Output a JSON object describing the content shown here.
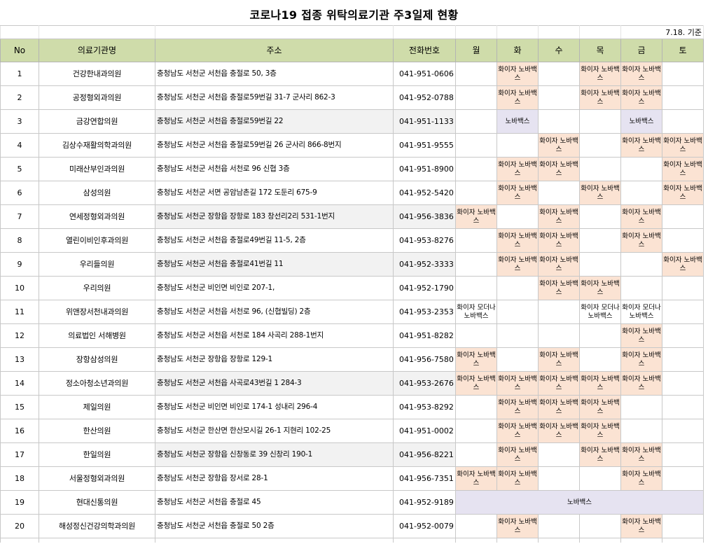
{
  "title": "코로나19 접종 위탁의료기관 주3일제 현황",
  "reference_date": "7.18. 기준",
  "headers": {
    "no": "No",
    "name": "의료기관명",
    "address": "주소",
    "phone": "전화번호",
    "days": [
      "월",
      "화",
      "수",
      "목",
      "금",
      "토"
    ]
  },
  "vaccine_labels": {
    "pn": "화이자 노바백스",
    "n": "노바백스",
    "pmn": "화이자 모더나 노바백스"
  },
  "colors": {
    "header": "#cfdcaa",
    "pfizer_novavax": "#fbe3d3",
    "novavax": "#e6e3f1",
    "pfizer_moderna_novavax": "#dde7f3"
  },
  "rows": [
    {
      "no": "1",
      "name": "건강한내과의원",
      "address": "충청남도 서천군 서천읍 충절로 50, 3층",
      "phone": "041-951-0606",
      "days": [
        "",
        "pn",
        "",
        "pn",
        "pn",
        ""
      ]
    },
    {
      "no": "2",
      "name": "공정형외과의원",
      "address": "충청남도 서천군 서천읍 충절로59번길 31-7 군사리 862-3",
      "phone": "041-952-0788",
      "days": [
        "",
        "pn",
        "",
        "pn",
        "pn",
        ""
      ]
    },
    {
      "no": "3",
      "name": "금강연합의원",
      "address": "충청남도 서천군 서천읍 충절로59번길 22",
      "phone": "041-951-1133",
      "days": [
        "",
        "n",
        "",
        "",
        "n",
        ""
      ]
    },
    {
      "no": "4",
      "name": "김상수재활의학과의원",
      "address": "충청남도 서천군 서천읍 충절로59번길 26 군사리 866-8번지",
      "phone": "041-951-9555",
      "days": [
        "",
        "",
        "pn",
        "",
        "pn",
        "pn"
      ]
    },
    {
      "no": "5",
      "name": "미래산부인과의원",
      "address": "충청남도 서천군 서천읍 서천로 96 신협 3층",
      "phone": "041-951-8900",
      "days": [
        "",
        "pn",
        "pn",
        "",
        "",
        "pn"
      ]
    },
    {
      "no": "6",
      "name": "삼성의원",
      "address": "충청남도 서천군 서면 공암남촌길 172 도둔리 675-9",
      "phone": "041-952-5420",
      "days": [
        "",
        "pn",
        "",
        "pn",
        "",
        "pn"
      ]
    },
    {
      "no": "7",
      "name": "연세정형외과의원",
      "address": "충청남도 서천군 장항읍 장항로 183 창선리2리 531-1번지",
      "phone": "041-956-3836",
      "days": [
        "pn",
        "",
        "pn",
        "",
        "pn",
        ""
      ]
    },
    {
      "no": "8",
      "name": "열린이비인후과의원",
      "address": "충청남도 서천군 서천읍 충절로49번길 11-5, 2층",
      "phone": "041-953-8276",
      "days": [
        "",
        "pn",
        "pn",
        "",
        "pn",
        ""
      ]
    },
    {
      "no": "9",
      "name": "우리들의원",
      "address": "충청남도 서천군 서천읍 충절로41번길 11",
      "phone": "041-952-3333",
      "days": [
        "",
        "pn",
        "pn",
        "",
        "",
        "pn"
      ]
    },
    {
      "no": "10",
      "name": "우리의원",
      "address": "충청남도 서천군 비인면 비인로 207-1,",
      "phone": "041-952-1790",
      "days": [
        "",
        "",
        "pn",
        "pn",
        "",
        ""
      ]
    },
    {
      "no": "11",
      "name": "위앤장서천내과의원",
      "address": "충청남도 서천군 서천읍 서천로 96, (신협빌딩) 2층",
      "phone": "041-953-2353",
      "days": [
        "pmn",
        "",
        "",
        "pmn",
        "pmn",
        ""
      ]
    },
    {
      "no": "12",
      "name": "의료법인 서해병원",
      "address": "충청남도 서천군 서천읍 서천로 184 사곡리 288-1번지",
      "phone": "041-951-8282",
      "days": [
        "",
        "",
        "",
        "",
        "pn",
        ""
      ]
    },
    {
      "no": "13",
      "name": "장항삼성의원",
      "address": "충청남도 서천군 장항읍 장항로 129-1",
      "phone": "041-956-7580",
      "days": [
        "pn",
        "",
        "pn",
        "",
        "pn",
        ""
      ]
    },
    {
      "no": "14",
      "name": "정소아청소년과의원",
      "address": "충청남도 서천군 서천읍 사곡로43번길 1 284-3",
      "phone": "041-953-2676",
      "days": [
        "pn",
        "pn",
        "pn",
        "pn",
        "pn",
        ""
      ]
    },
    {
      "no": "15",
      "name": "제일의원",
      "address": "충청남도 서천군 비인면 비인로 174-1 성내리 296-4",
      "phone": "041-953-8292",
      "days": [
        "",
        "pn",
        "pn",
        "pn",
        "",
        ""
      ]
    },
    {
      "no": "16",
      "name": "한산의원",
      "address": "충청남도 서천군 한산면 한산모시길 26-1 지현리 102-25",
      "phone": "041-951-0002",
      "days": [
        "",
        "pn",
        "pn",
        "pn",
        "",
        ""
      ]
    },
    {
      "no": "17",
      "name": "한일의원",
      "address": "충청남도 서천군 장항읍 신창동로 39 신창리 190-1",
      "phone": "041-956-8221",
      "days": [
        "",
        "pn",
        "",
        "pn",
        "pn",
        ""
      ]
    },
    {
      "no": "18",
      "name": "서울정형외과의원",
      "address": "충청남도 서천군 장항읍 장서로 28-1",
      "phone": "041-956-7351",
      "days": [
        "pn",
        "pn",
        "",
        "",
        "pn",
        ""
      ]
    },
    {
      "no": "19",
      "name": "현대신통의원",
      "address": "충청남도 서천군 서천읍 충절로 45",
      "phone": "041-952-9189",
      "merged": "노바백스"
    },
    {
      "no": "20",
      "name": "해성정신건강의학과의원",
      "address": "충청남도 서천군 서천읍 충절로 50 2층",
      "phone": "041-952-0079",
      "days": [
        "",
        "pn",
        "",
        "",
        "pn",
        ""
      ]
    }
  ]
}
